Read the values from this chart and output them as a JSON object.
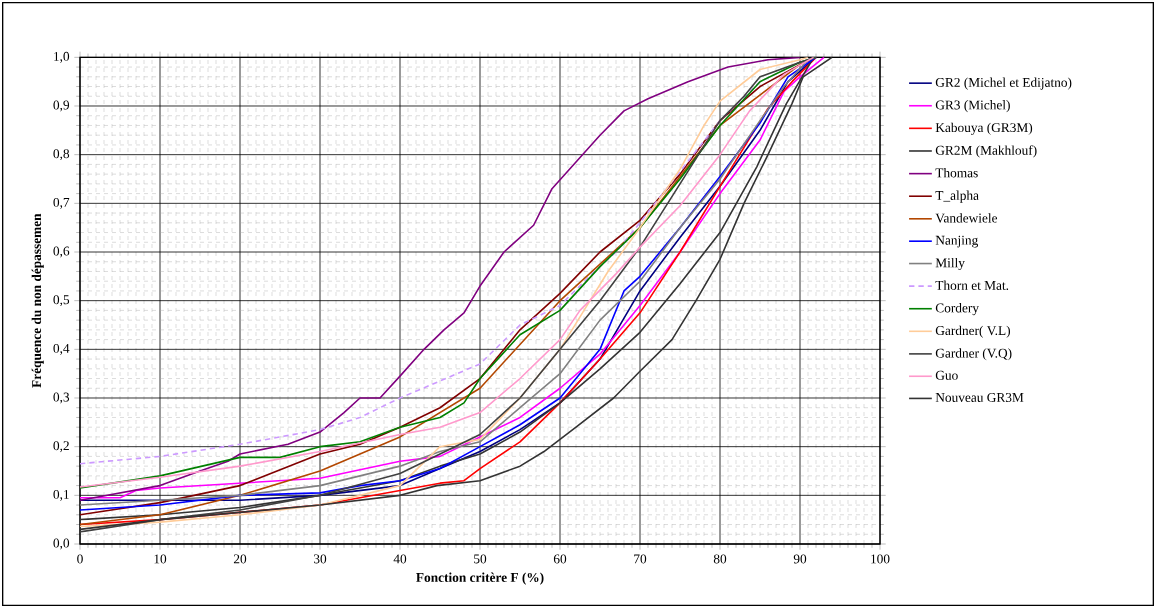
{
  "chart_data": {
    "type": "line",
    "xlabel": "Fonction critère F (%)",
    "ylabel": "Fréquence du non dépassemen",
    "xlim": [
      0,
      100
    ],
    "ylim": [
      0,
      1
    ],
    "xticks": [
      0,
      10,
      20,
      30,
      40,
      50,
      60,
      70,
      80,
      90,
      100
    ],
    "yticks": [
      {
        "value": 0,
        "label": "0,0"
      },
      {
        "value": 0.1,
        "label": "0,1"
      },
      {
        "value": 0.2,
        "label": "0,2"
      },
      {
        "value": 0.3,
        "label": "0,3"
      },
      {
        "value": 0.4,
        "label": "0,4"
      },
      {
        "value": 0.5,
        "label": "0,5"
      },
      {
        "value": 0.6,
        "label": "0,6"
      },
      {
        "value": 0.7,
        "label": "0,7"
      },
      {
        "value": 0.8,
        "label": "0,8"
      },
      {
        "value": 0.9,
        "label": "0,9"
      },
      {
        "value": 1,
        "label": "1,0"
      }
    ],
    "grid": true,
    "legend": "right",
    "marker": "none",
    "series": [
      {
        "name": "GR2 (Michel et Edijatno)",
        "color": "#000080",
        "line_style": "solid",
        "x": [
          0,
          10,
          20,
          30,
          40,
          50,
          55,
          60,
          65,
          70,
          75,
          80,
          85,
          88.5,
          92
        ],
        "values": [
          0.09,
          0.09,
          0.09,
          0.1,
          0.12,
          0.19,
          0.235,
          0.29,
          0.38,
          0.52,
          0.63,
          0.735,
          0.85,
          0.95,
          1.0
        ]
      },
      {
        "name": "GR3 (Michel)",
        "color": "#ff00ff",
        "line_style": "solid",
        "x": [
          0,
          5,
          7,
          10,
          20,
          30,
          40,
          45,
          50,
          55,
          60,
          65,
          70,
          75,
          80,
          85,
          88,
          90,
          93
        ],
        "values": [
          0.095,
          0.095,
          0.11,
          0.115,
          0.125,
          0.135,
          0.17,
          0.18,
          0.22,
          0.26,
          0.32,
          0.39,
          0.49,
          0.6,
          0.72,
          0.83,
          0.93,
          0.96,
          1.0
        ]
      },
      {
        "name": "Kabouya (GR3M)",
        "color": "#ff0000",
        "line_style": "solid",
        "x": [
          0,
          10,
          20,
          30,
          40,
          45,
          48,
          50,
          55,
          60,
          65,
          70,
          75,
          80,
          83,
          86,
          89,
          92
        ],
        "values": [
          0.04,
          0.05,
          0.065,
          0.08,
          0.11,
          0.125,
          0.13,
          0.155,
          0.21,
          0.29,
          0.38,
          0.475,
          0.6,
          0.735,
          0.815,
          0.895,
          0.95,
          1.0
        ]
      },
      {
        "name": "GR2M (Makhlouf)",
        "color": "#333333",
        "line_style": "solid",
        "x": [
          0,
          10,
          20,
          30,
          40,
          45,
          50,
          55,
          60,
          65,
          70,
          75,
          80,
          84.6,
          88.3,
          91.7
        ],
        "values": [
          0.05,
          0.06,
          0.075,
          0.1,
          0.13,
          0.16,
          0.185,
          0.23,
          0.29,
          0.36,
          0.435,
          0.535,
          0.64,
          0.775,
          0.905,
          1.0
        ]
      },
      {
        "name": "Thomas",
        "color": "#800080",
        "line_style": "solid",
        "x": [
          0,
          10,
          15,
          18.5,
          20,
          26,
          30,
          33,
          35,
          37.5,
          40,
          43,
          45.5,
          48,
          50,
          53,
          56.7,
          59,
          62,
          65,
          68,
          71,
          76,
          81,
          86,
          90
        ],
        "values": [
          0.09,
          0.12,
          0.15,
          0.17,
          0.185,
          0.205,
          0.23,
          0.27,
          0.3,
          0.3,
          0.345,
          0.4,
          0.44,
          0.475,
          0.53,
          0.6,
          0.655,
          0.73,
          0.785,
          0.84,
          0.89,
          0.915,
          0.95,
          0.98,
          0.995,
          1.0
        ]
      },
      {
        "name": "T_alpha",
        "color": "#800000",
        "line_style": "solid",
        "x": [
          0,
          10,
          20,
          30,
          35,
          40,
          45,
          50,
          55,
          60,
          65,
          70,
          75,
          80,
          85,
          90,
          92
        ],
        "values": [
          0.06,
          0.085,
          0.12,
          0.185,
          0.205,
          0.24,
          0.28,
          0.34,
          0.44,
          0.515,
          0.6,
          0.665,
          0.76,
          0.87,
          0.94,
          0.985,
          1.0
        ]
      },
      {
        "name": "Vandewiele",
        "color": "#b34700",
        "line_style": "solid",
        "x": [
          0,
          10,
          20,
          30,
          40,
          50,
          60,
          70,
          80,
          90,
          92
        ],
        "values": [
          0.04,
          0.06,
          0.1,
          0.15,
          0.22,
          0.32,
          0.5,
          0.65,
          0.86,
          0.985,
          1.0
        ]
      },
      {
        "name": "Nanjing",
        "color": "#0000ff",
        "line_style": "solid",
        "x": [
          0,
          10,
          20,
          30,
          35,
          40,
          45,
          50,
          55,
          60,
          65,
          68,
          70,
          75,
          80,
          85,
          88.5,
          92
        ],
        "values": [
          0.07,
          0.08,
          0.1,
          0.105,
          0.12,
          0.13,
          0.155,
          0.2,
          0.245,
          0.3,
          0.4,
          0.52,
          0.55,
          0.65,
          0.755,
          0.865,
          0.96,
          1.0
        ]
      },
      {
        "name": "Milly",
        "color": "#808080",
        "line_style": "solid",
        "x": [
          0,
          10,
          20,
          30,
          40,
          45,
          50,
          55,
          60,
          65,
          70,
          75,
          80,
          85,
          88,
          91,
          92
        ],
        "values": [
          0.08,
          0.09,
          0.1,
          0.12,
          0.16,
          0.19,
          0.21,
          0.28,
          0.35,
          0.46,
          0.54,
          0.65,
          0.75,
          0.87,
          0.94,
          0.995,
          1.0
        ]
      },
      {
        "name": "Thorn et Mat.",
        "color": "#cc99ff",
        "line_style": "dashed",
        "x": [
          0,
          10,
          20,
          30,
          35,
          40,
          45,
          50,
          55,
          60,
          64,
          67,
          69.5,
          80,
          85,
          90,
          92
        ],
        "values": [
          0.165,
          0.18,
          0.205,
          0.235,
          0.26,
          0.3,
          0.335,
          0.37,
          0.45,
          0.49,
          0.555,
          0.6,
          0.65,
          0.87,
          0.95,
          0.99,
          1.0
        ]
      },
      {
        "name": "Cordery",
        "color": "#008000",
        "line_style": "solid",
        "x": [
          0,
          10,
          20,
          25,
          30,
          35,
          40,
          45,
          48,
          50,
          55,
          60,
          65,
          70,
          75,
          80,
          85,
          90,
          92
        ],
        "values": [
          0.115,
          0.14,
          0.178,
          0.178,
          0.2,
          0.21,
          0.24,
          0.26,
          0.29,
          0.34,
          0.43,
          0.48,
          0.57,
          0.65,
          0.75,
          0.86,
          0.95,
          0.99,
          1.0
        ]
      },
      {
        "name": "Gardner( V.L)",
        "color": "#ffcc99",
        "line_style": "solid",
        "x": [
          0,
          10,
          20,
          30,
          40,
          45,
          50,
          55,
          60,
          63,
          66,
          70,
          75,
          78,
          80,
          85,
          90,
          91
        ],
        "values": [
          0.036,
          0.045,
          0.06,
          0.08,
          0.12,
          0.2,
          0.215,
          0.3,
          0.4,
          0.48,
          0.56,
          0.65,
          0.77,
          0.86,
          0.91,
          0.975,
          0.995,
          1.0
        ]
      },
      {
        "name": "Gardner (V.Q)",
        "color": "#404040",
        "line_style": "solid",
        "x": [
          0,
          10,
          20,
          30,
          40,
          50,
          55,
          60,
          65,
          70,
          75,
          80,
          83,
          85,
          90,
          92
        ],
        "values": [
          0.025,
          0.05,
          0.07,
          0.1,
          0.145,
          0.225,
          0.3,
          0.4,
          0.5,
          0.61,
          0.74,
          0.87,
          0.92,
          0.96,
          0.99,
          1.0
        ]
      },
      {
        "name": "Guo",
        "color": "#ff99cc",
        "line_style": "solid",
        "x": [
          0,
          10,
          20,
          30,
          40,
          45,
          50,
          55,
          60,
          62.5,
          67,
          70,
          75,
          80,
          83.7,
          88,
          91.7
        ],
        "values": [
          0.117,
          0.137,
          0.16,
          0.19,
          0.225,
          0.24,
          0.27,
          0.34,
          0.42,
          0.48,
          0.555,
          0.61,
          0.695,
          0.8,
          0.89,
          0.965,
          1.0
        ]
      },
      {
        "name": "Nouveau GR3M",
        "color": "#333333",
        "line_style": "solid",
        "x": [
          0,
          10,
          20,
          30,
          40,
          44.6,
          50,
          55,
          58,
          62,
          66.7,
          70,
          74,
          77,
          80,
          83,
          86,
          89,
          90.4,
          94
        ],
        "values": [
          0.03,
          0.05,
          0.065,
          0.08,
          0.1,
          0.12,
          0.13,
          0.16,
          0.19,
          0.24,
          0.3,
          0.355,
          0.42,
          0.5,
          0.585,
          0.7,
          0.8,
          0.905,
          0.96,
          1.0
        ]
      }
    ]
  }
}
